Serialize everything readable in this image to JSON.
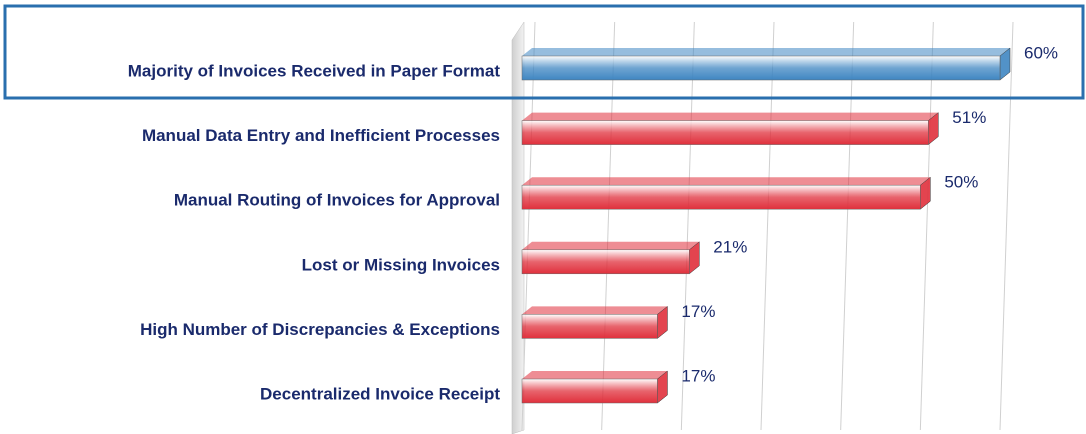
{
  "chart_data": {
    "type": "bar",
    "orientation": "horizontal",
    "categories": [
      "Majority of Invoices Received in Paper Format",
      "Manual Data Entry and Inefficient Processes",
      "Manual Routing of Invoices for Approval",
      "Lost or Missing Invoices",
      "High Number of Discrepancies & Exceptions",
      "Decentralized Invoice Receipt"
    ],
    "values": [
      60,
      51,
      50,
      21,
      17,
      17
    ],
    "value_labels": [
      "60%",
      "51%",
      "50%",
      "21%",
      "17%",
      "17%"
    ],
    "colors": [
      "#3f86c2",
      "#e0303c",
      "#e0303c",
      "#e0303c",
      "#e0303c",
      "#e0303c"
    ],
    "xlim": [
      0,
      60
    ],
    "xticks": [
      0,
      10,
      20,
      30,
      40,
      50,
      60
    ],
    "grid": true,
    "highlight": 0
  }
}
